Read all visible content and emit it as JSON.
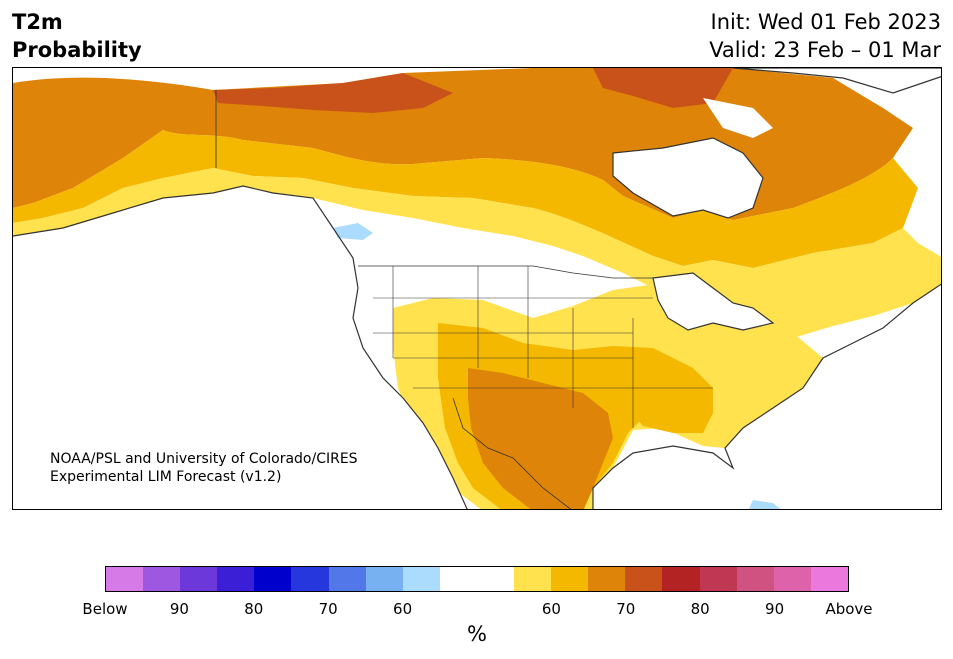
{
  "header": {
    "title_line1": "T2m",
    "title_line2": "Probability",
    "init": "Init: Wed 01 Feb 2023",
    "valid": "Valid: 23 Feb – 01 Mar"
  },
  "map": {
    "region": "North America",
    "credit_line1": "NOAA/PSL and University of Colorado/CIRES",
    "credit_line2": "Experimental LIM Forecast (v1.2)"
  },
  "colorbar": {
    "unit": "%",
    "colors": [
      "#d67ae8",
      "#9d57e0",
      "#6c38d9",
      "#3a1fd6",
      "#0000cd",
      "#2637dd",
      "#5277e8",
      "#77b1f2",
      "#acdcfd",
      "#ffffff",
      "#ffffff",
      "#ffe24e",
      "#f5b800",
      "#de8408",
      "#c9521a",
      "#b42323",
      "#bf3753",
      "#cf5280",
      "#dd62aa",
      "#ea78dd"
    ],
    "tick_labels": [
      "Below",
      "90",
      "80",
      "70",
      "60",
      "60",
      "70",
      "80",
      "90",
      "Above"
    ]
  },
  "colors": {
    "p60": "#ffe24e",
    "p70": "#f5b800",
    "p80": "#de8408",
    "p90": "#c9521a",
    "below60": "#acdcfd",
    "water": "#ffffff",
    "lines": "#333333"
  }
}
